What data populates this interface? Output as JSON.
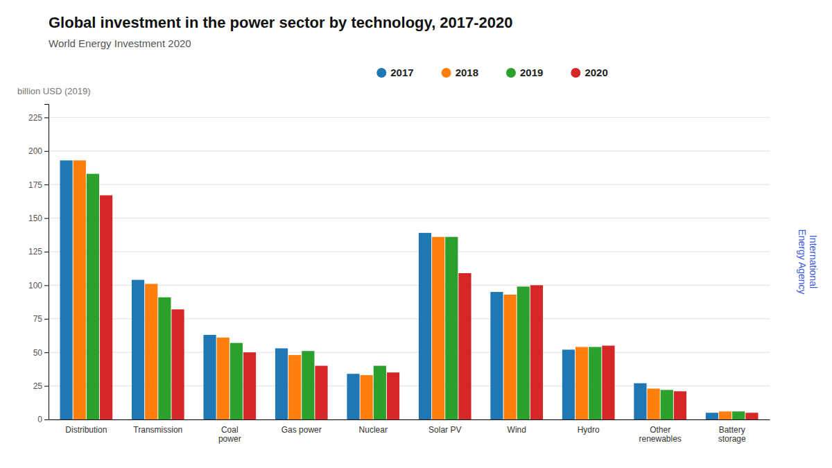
{
  "chart_data": {
    "type": "bar",
    "title": "Global investment in the power sector by technology, 2017-2020",
    "subtitle": "World Energy Investment 2020",
    "ylabel": "billion USD (2019)",
    "categories": [
      "Distribution",
      "Transmission",
      "Coal\npower",
      "Gas power",
      "Nuclear",
      "Solar PV",
      "Wind",
      "Hydro",
      "Other\nrenewables",
      "Battery\nstorage"
    ],
    "series": [
      {
        "name": "2017",
        "values": [
          193,
          104,
          63,
          53,
          34,
          139,
          95,
          52,
          27,
          5
        ]
      },
      {
        "name": "2018",
        "values": [
          193,
          101,
          61,
          48,
          33,
          136,
          93,
          54,
          23,
          6
        ]
      },
      {
        "name": "2019",
        "values": [
          183,
          91,
          57,
          51,
          40,
          136,
          99,
          54,
          22,
          6
        ]
      },
      {
        "name": "2020",
        "values": [
          167,
          82,
          50,
          40,
          35,
          109,
          100,
          55,
          21,
          5
        ]
      }
    ],
    "ylim": [
      0,
      235
    ],
    "yticks": [
      0,
      25,
      50,
      75,
      100,
      125,
      150,
      175,
      200,
      225
    ],
    "grid": true,
    "legend": "top",
    "annotations": [
      "International\nEnergy Agency"
    ]
  }
}
